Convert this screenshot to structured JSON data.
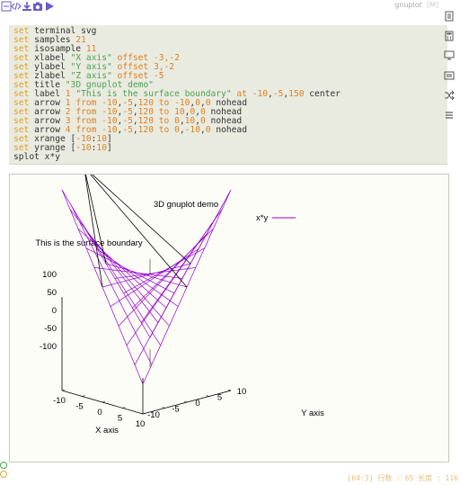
{
  "toolbar": {
    "language": "gnuplot",
    "lang_suffix": "[M]"
  },
  "editor": {
    "lines": [
      [
        {
          "t": "set",
          "c": "kw"
        },
        {
          "t": " terminal svg",
          "c": ""
        }
      ],
      [
        {
          "t": "set",
          "c": "kw"
        },
        {
          "t": " samples ",
          "c": ""
        },
        {
          "t": "21",
          "c": "num"
        }
      ],
      [
        {
          "t": "set",
          "c": "kw"
        },
        {
          "t": " isosample ",
          "c": ""
        },
        {
          "t": "11",
          "c": "num"
        }
      ],
      [
        {
          "t": "set",
          "c": "kw"
        },
        {
          "t": " xlabel ",
          "c": ""
        },
        {
          "t": "\"X axis\"",
          "c": "str"
        },
        {
          "t": " offset ",
          "c": "num"
        },
        {
          "t": "-3,-2",
          "c": "num"
        }
      ],
      [
        {
          "t": "set",
          "c": "kw"
        },
        {
          "t": " ylabel ",
          "c": ""
        },
        {
          "t": "\"Y axis\"",
          "c": "str"
        },
        {
          "t": " offset ",
          "c": "num"
        },
        {
          "t": "3,-2",
          "c": "num"
        }
      ],
      [
        {
          "t": "set",
          "c": "kw"
        },
        {
          "t": " zlabel ",
          "c": ""
        },
        {
          "t": "\"Z axis\"",
          "c": "str"
        },
        {
          "t": " offset ",
          "c": "num"
        },
        {
          "t": "-5",
          "c": "num"
        }
      ],
      [
        {
          "t": "set",
          "c": "kw"
        },
        {
          "t": " title ",
          "c": ""
        },
        {
          "t": "\"3D gnuplot demo\"",
          "c": "str"
        }
      ],
      [
        {
          "t": "set",
          "c": "kw"
        },
        {
          "t": " label ",
          "c": ""
        },
        {
          "t": "1",
          "c": "num"
        },
        {
          "t": " ",
          "c": ""
        },
        {
          "t": "\"This is the surface boundary\"",
          "c": "str"
        },
        {
          "t": " at ",
          "c": "num"
        },
        {
          "t": "-10",
          "c": "num"
        },
        {
          "t": ",",
          "c": ""
        },
        {
          "t": "-5",
          "c": "num"
        },
        {
          "t": ",",
          "c": ""
        },
        {
          "t": "150",
          "c": "num"
        },
        {
          "t": " center",
          "c": ""
        }
      ],
      [
        {
          "t": "set",
          "c": "kw"
        },
        {
          "t": " arrow ",
          "c": ""
        },
        {
          "t": "1",
          "c": "num"
        },
        {
          "t": " from ",
          "c": "num"
        },
        {
          "t": "-10",
          "c": "num"
        },
        {
          "t": ",",
          "c": ""
        },
        {
          "t": "-5",
          "c": "num"
        },
        {
          "t": ",",
          "c": ""
        },
        {
          "t": "120",
          "c": "num"
        },
        {
          "t": " to ",
          "c": "num"
        },
        {
          "t": "-10",
          "c": "num"
        },
        {
          "t": ",",
          "c": ""
        },
        {
          "t": "0",
          "c": "num"
        },
        {
          "t": ",",
          "c": ""
        },
        {
          "t": "0",
          "c": "num"
        },
        {
          "t": " nohead",
          "c": ""
        }
      ],
      [
        {
          "t": "set",
          "c": "kw"
        },
        {
          "t": " arrow ",
          "c": ""
        },
        {
          "t": "2",
          "c": "num"
        },
        {
          "t": " from ",
          "c": "num"
        },
        {
          "t": "-10",
          "c": "num"
        },
        {
          "t": ",",
          "c": ""
        },
        {
          "t": "-5",
          "c": "num"
        },
        {
          "t": ",",
          "c": ""
        },
        {
          "t": "120",
          "c": "num"
        },
        {
          "t": " to ",
          "c": "num"
        },
        {
          "t": "10",
          "c": "num"
        },
        {
          "t": ",",
          "c": ""
        },
        {
          "t": "0",
          "c": "num"
        },
        {
          "t": ",",
          "c": ""
        },
        {
          "t": "0",
          "c": "num"
        },
        {
          "t": " nohead",
          "c": ""
        }
      ],
      [
        {
          "t": "set",
          "c": "kw"
        },
        {
          "t": " arrow ",
          "c": ""
        },
        {
          "t": "3",
          "c": "num"
        },
        {
          "t": " from ",
          "c": "num"
        },
        {
          "t": "-10",
          "c": "num"
        },
        {
          "t": ",",
          "c": ""
        },
        {
          "t": "-5",
          "c": "num"
        },
        {
          "t": ",",
          "c": ""
        },
        {
          "t": "120",
          "c": "num"
        },
        {
          "t": " to ",
          "c": "num"
        },
        {
          "t": "0",
          "c": "num"
        },
        {
          "t": ",",
          "c": ""
        },
        {
          "t": "10",
          "c": "num"
        },
        {
          "t": ",",
          "c": ""
        },
        {
          "t": "0",
          "c": "num"
        },
        {
          "t": " nohead",
          "c": ""
        }
      ],
      [
        {
          "t": "set",
          "c": "kw"
        },
        {
          "t": " arrow ",
          "c": ""
        },
        {
          "t": "4",
          "c": "num"
        },
        {
          "t": " from ",
          "c": "num"
        },
        {
          "t": "-10",
          "c": "num"
        },
        {
          "t": ",",
          "c": ""
        },
        {
          "t": "-5",
          "c": "num"
        },
        {
          "t": ",",
          "c": ""
        },
        {
          "t": "120",
          "c": "num"
        },
        {
          "t": " to ",
          "c": "num"
        },
        {
          "t": "0",
          "c": "num"
        },
        {
          "t": ",",
          "c": ""
        },
        {
          "t": "-10",
          "c": "num"
        },
        {
          "t": ",",
          "c": ""
        },
        {
          "t": "0",
          "c": "num"
        },
        {
          "t": " nohead",
          "c": ""
        }
      ],
      [
        {
          "t": "set",
          "c": "kw"
        },
        {
          "t": " xrange [",
          "c": ""
        },
        {
          "t": "-10",
          "c": "num"
        },
        {
          "t": ":",
          "c": ""
        },
        {
          "t": "10",
          "c": "num"
        },
        {
          "t": "]",
          "c": ""
        }
      ],
      [
        {
          "t": "set",
          "c": "kw"
        },
        {
          "t": " yrange [",
          "c": ""
        },
        {
          "t": "-10",
          "c": "num"
        },
        {
          "t": ":",
          "c": ""
        },
        {
          "t": "10",
          "c": "num"
        },
        {
          "t": "]",
          "c": ""
        }
      ],
      [
        {
          "t": "splot x*y",
          "c": ""
        }
      ]
    ]
  },
  "plot": {
    "title": "3D gnuplot demo",
    "legend": "x*y",
    "label": "This is the surface boundary",
    "xlabel": "X axis",
    "ylabel": "Y axis",
    "z_ticks": [
      "100",
      "50",
      "0",
      "-50",
      "-100"
    ],
    "x_ticks": [
      "-10",
      "-5",
      "0",
      "5",
      "10"
    ],
    "y_ticks": [
      "-10",
      "-5",
      "0",
      "5",
      "10"
    ],
    "surface_color": "#9400d3"
  },
  "chart_data": {
    "type": "surface",
    "title": "3D gnuplot demo",
    "function": "x*y",
    "xlabel": "X axis",
    "ylabel": "Y axis",
    "xlim": [
      -10,
      10
    ],
    "ylim": [
      -10,
      10
    ],
    "zlim": [
      -100,
      100
    ],
    "isosamples": 11,
    "legend": "top-right"
  },
  "status": "[64:3] 行数 : 65 长度 : 116"
}
